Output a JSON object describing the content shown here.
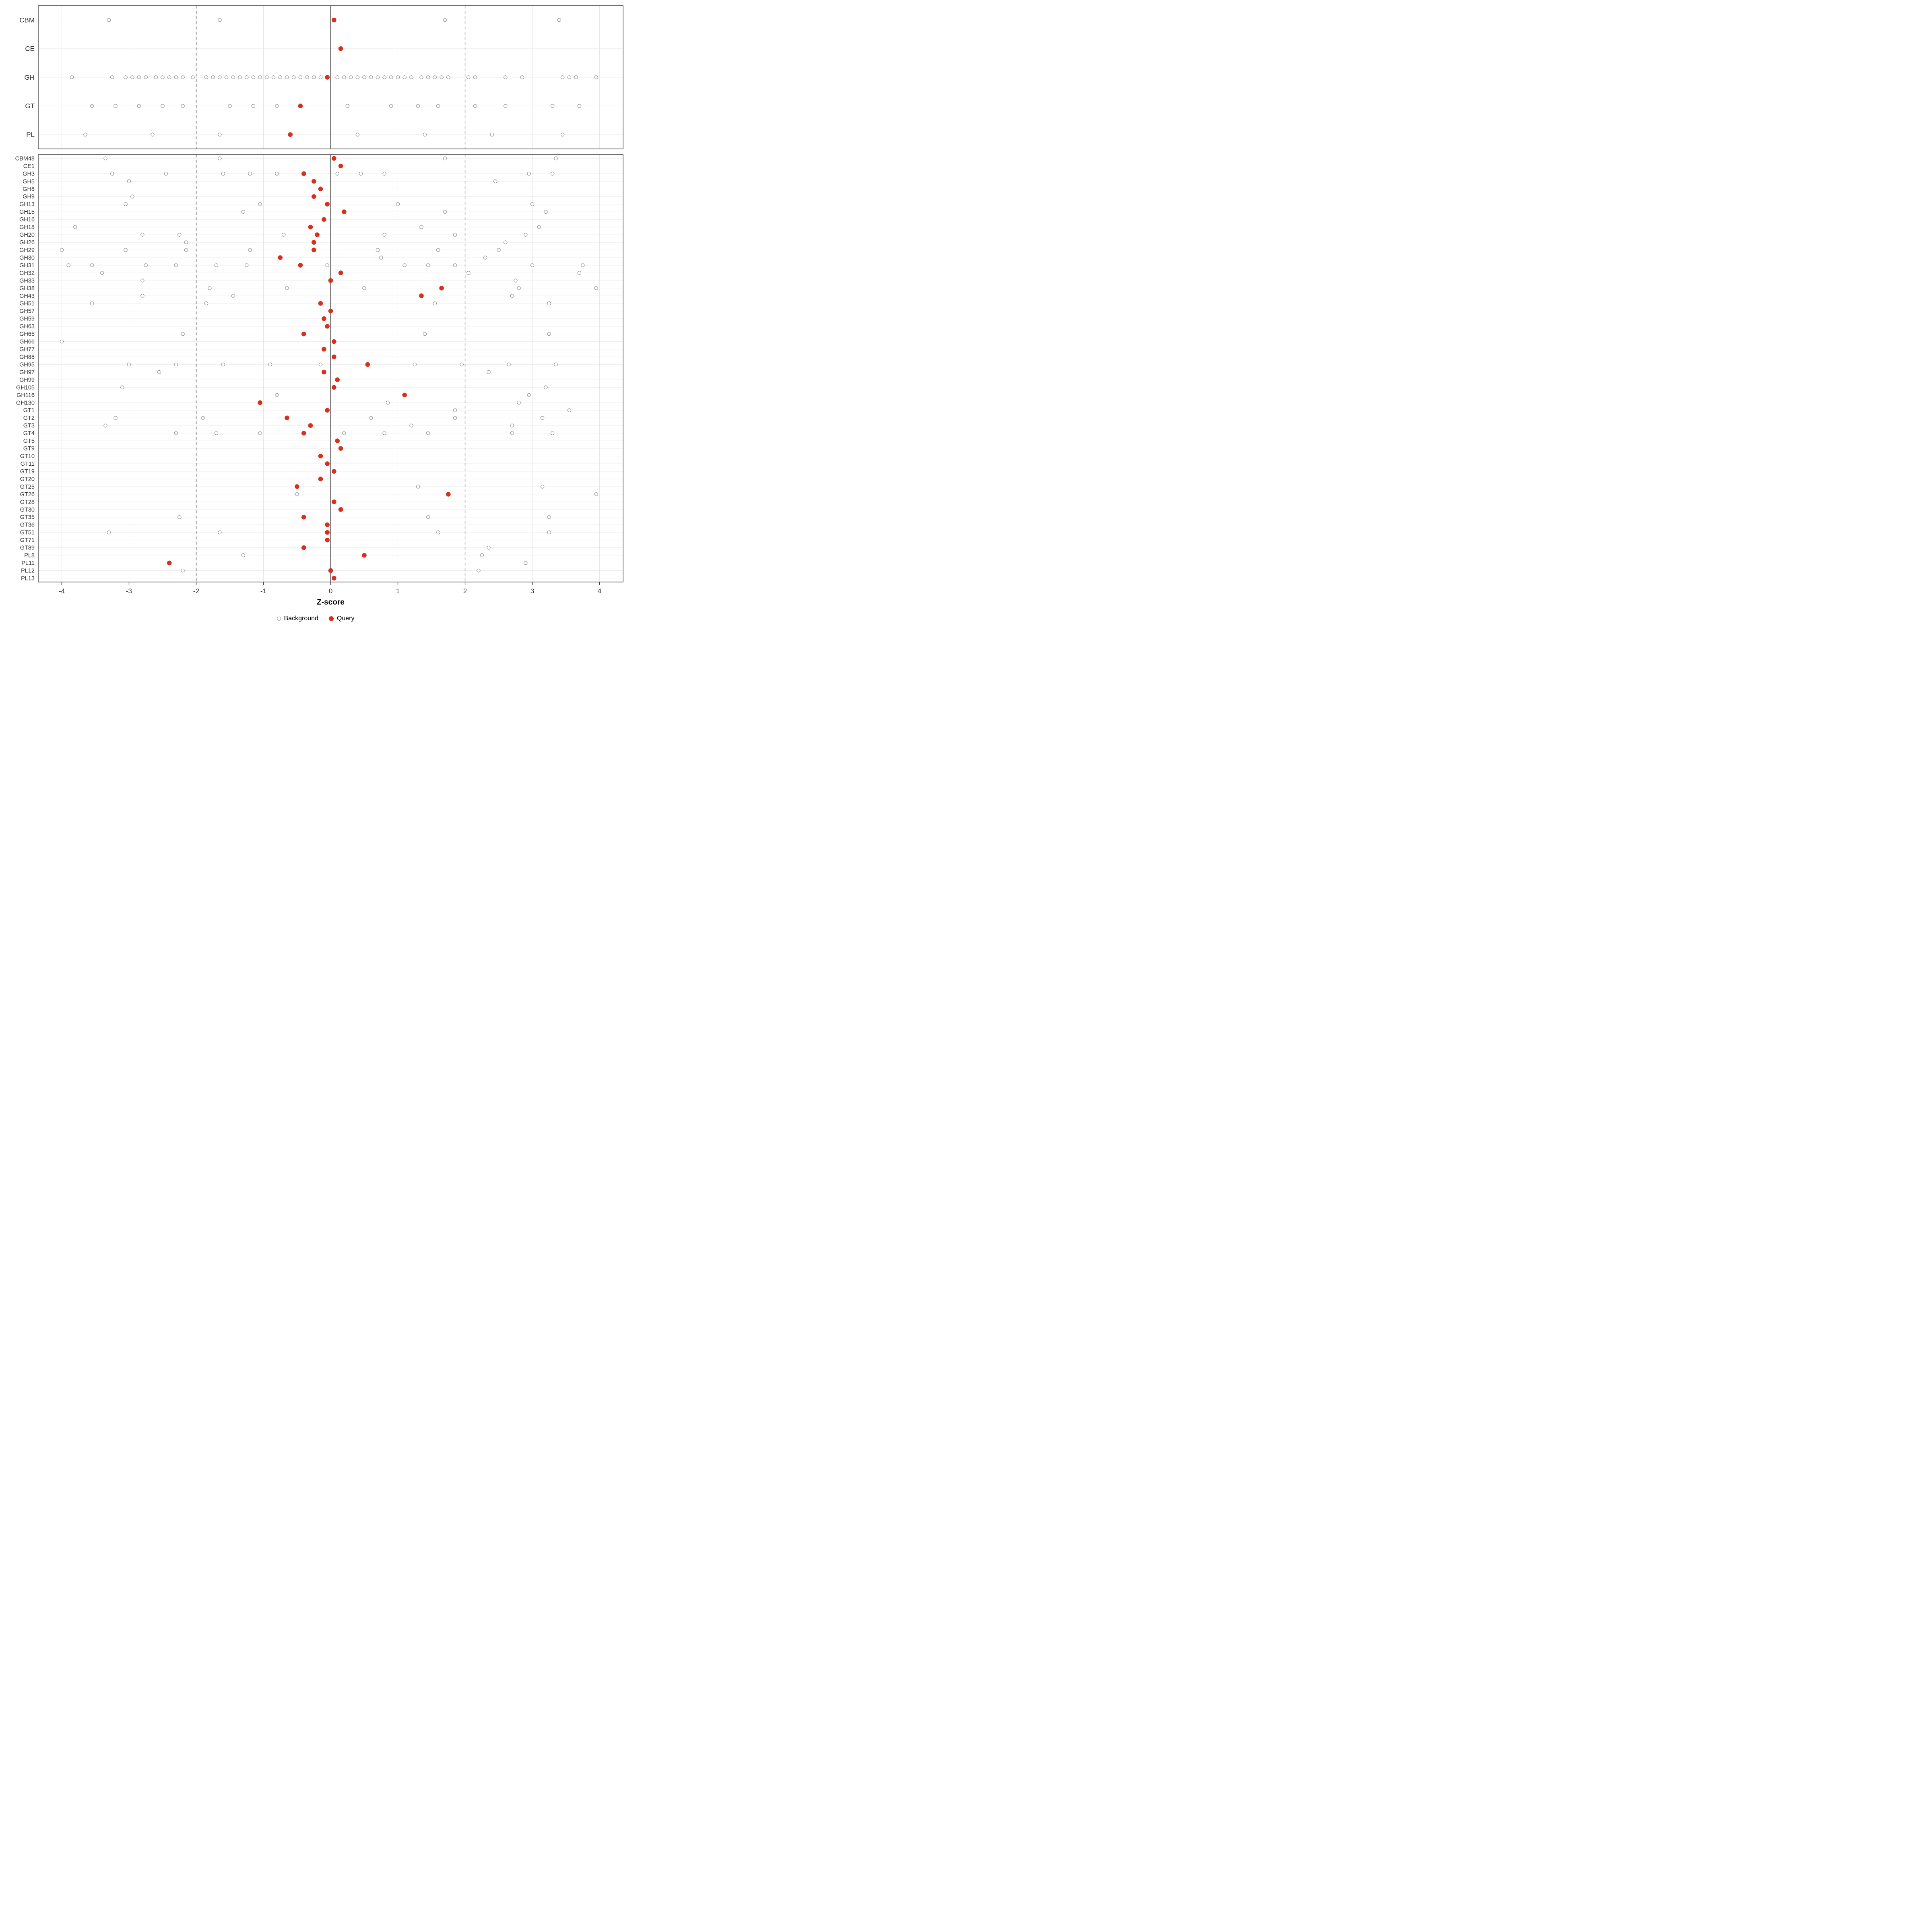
{
  "legend": {
    "background_label": "Background",
    "query_label": "Query"
  },
  "colors": {
    "query": "#d7301f",
    "background_stroke": "#8c8c8c",
    "grid_major": "#e4e4e4",
    "grid_row": "#ededed",
    "zero_line": "#4a4a4a",
    "threshold_line": "#4a4a4a",
    "panel_border": "#333333",
    "axis_text": "#303030"
  },
  "chart_data": {
    "type": "scatter",
    "xlabel": "Z-score",
    "xlim": [
      -4.35,
      4.35
    ],
    "x_ticks": [
      -4,
      -3,
      -2,
      -1,
      0,
      1,
      2,
      3,
      4
    ],
    "grid": true,
    "legend_position": "bottom",
    "series_legend": [
      "Background",
      "Query"
    ],
    "reference_lines": {
      "solid": [
        0
      ],
      "dashed": [
        -2,
        2
      ]
    },
    "panels": [
      {
        "name": "enzyme-class-summary",
        "rows": [
          {
            "label": "CBM",
            "background": [
              -3.3,
              -1.65,
              1.7,
              3.4
            ],
            "query": [
              0.05
            ]
          },
          {
            "label": "CE",
            "background": [],
            "query": [
              0.15
            ]
          },
          {
            "label": "GH",
            "background": [
              -3.85,
              -3.25,
              -3.05,
              -2.95,
              -2.85,
              -2.75,
              -2.6,
              -2.5,
              -2.4,
              -2.3,
              -2.2,
              -2.05,
              -1.85,
              -1.75,
              -1.65,
              -1.55,
              -1.45,
              -1.35,
              -1.25,
              -1.15,
              -1.05,
              -0.95,
              -0.85,
              -0.75,
              -0.65,
              -0.55,
              -0.45,
              -0.35,
              -0.25,
              -0.15,
              0.1,
              0.2,
              0.3,
              0.4,
              0.5,
              0.6,
              0.7,
              0.8,
              0.9,
              1.0,
              1.1,
              1.2,
              1.35,
              1.45,
              1.55,
              1.65,
              1.75,
              2.05,
              2.15,
              2.6,
              2.85,
              3.45,
              3.55,
              3.65,
              3.95
            ],
            "query": [
              -0.05
            ]
          },
          {
            "label": "GT",
            "background": [
              -3.55,
              -3.2,
              -2.85,
              -2.5,
              -2.2,
              -1.5,
              -1.15,
              -0.8,
              0.25,
              0.9,
              1.3,
              1.6,
              2.15,
              2.6,
              3.3,
              3.7
            ],
            "query": [
              -0.45
            ]
          },
          {
            "label": "PL",
            "background": [
              -3.65,
              -2.65,
              -1.65,
              0.4,
              1.4,
              2.4,
              3.45
            ],
            "query": [
              -0.6
            ]
          }
        ]
      },
      {
        "name": "enzyme-family-detail",
        "rows": [
          {
            "label": "CBM48",
            "background": [
              -3.35,
              -1.65,
              1.7,
              3.35
            ],
            "query": [
              0.05
            ]
          },
          {
            "label": "CE1",
            "background": [],
            "query": [
              0.15
            ]
          },
          {
            "label": "GH3",
            "background": [
              -3.25,
              -2.45,
              -1.6,
              -1.2,
              -0.8,
              0.1,
              0.45,
              0.8,
              2.95,
              3.3
            ],
            "query": [
              -0.4
            ]
          },
          {
            "label": "GH5",
            "background": [
              -3.0,
              2.45
            ],
            "query": [
              -0.25
            ]
          },
          {
            "label": "GH8",
            "background": [],
            "query": [
              -0.15
            ]
          },
          {
            "label": "GH9",
            "background": [
              -2.95
            ],
            "query": [
              -0.25
            ]
          },
          {
            "label": "GH13",
            "background": [
              -3.05,
              -1.05,
              1.0,
              3.0
            ],
            "query": [
              -0.05
            ]
          },
          {
            "label": "GH15",
            "background": [
              -1.3,
              1.7,
              3.2
            ],
            "query": [
              0.2
            ]
          },
          {
            "label": "GH16",
            "background": [],
            "query": [
              -0.1
            ]
          },
          {
            "label": "GH18",
            "background": [
              -3.8,
              1.35,
              3.1
            ],
            "query": [
              -0.3
            ]
          },
          {
            "label": "GH20",
            "background": [
              -2.8,
              -2.25,
              -0.7,
              0.8,
              1.85,
              2.9
            ],
            "query": [
              -0.2
            ]
          },
          {
            "label": "GH26",
            "background": [
              -2.15,
              2.6
            ],
            "query": [
              -0.25
            ]
          },
          {
            "label": "GH29",
            "background": [
              -4.0,
              -3.05,
              -2.15,
              -1.2,
              0.7,
              1.6,
              2.5
            ],
            "query": [
              -0.25
            ]
          },
          {
            "label": "GH30",
            "background": [
              0.75,
              2.3
            ],
            "query": [
              -0.75
            ]
          },
          {
            "label": "GH31",
            "background": [
              -3.9,
              -3.55,
              -2.75,
              -2.3,
              -1.7,
              -1.25,
              -0.05,
              1.1,
              1.45,
              1.85,
              3.0,
              3.75
            ],
            "query": [
              -0.45
            ]
          },
          {
            "label": "GH32",
            "background": [
              -3.4,
              2.05,
              3.7
            ],
            "query": [
              0.15
            ]
          },
          {
            "label": "GH33",
            "background": [
              -2.8,
              2.75
            ],
            "query": [
              0.0
            ]
          },
          {
            "label": "GH38",
            "background": [
              -1.8,
              -0.65,
              0.5,
              2.8,
              3.95
            ],
            "query": [
              1.65
            ]
          },
          {
            "label": "GH43",
            "background": [
              -2.8,
              -1.45,
              2.7
            ],
            "query": [
              1.35
            ]
          },
          {
            "label": "GH51",
            "background": [
              -3.55,
              -1.85,
              1.55,
              3.25
            ],
            "query": [
              -0.15
            ]
          },
          {
            "label": "GH57",
            "background": [],
            "query": [
              0.0
            ]
          },
          {
            "label": "GH59",
            "background": [],
            "query": [
              -0.1
            ]
          },
          {
            "label": "GH63",
            "background": [],
            "query": [
              -0.05
            ]
          },
          {
            "label": "GH65",
            "background": [
              -2.2,
              1.4,
              3.25
            ],
            "query": [
              -0.4
            ]
          },
          {
            "label": "GH66",
            "background": [
              -4.0
            ],
            "query": [
              0.05
            ]
          },
          {
            "label": "GH77",
            "background": [],
            "query": [
              -0.1
            ]
          },
          {
            "label": "GH88",
            "background": [],
            "query": [
              0.05
            ]
          },
          {
            "label": "GH95",
            "background": [
              -3.0,
              -2.3,
              -1.6,
              -0.9,
              -0.15,
              1.25,
              1.95,
              2.65,
              3.35
            ],
            "query": [
              0.55
            ]
          },
          {
            "label": "GH97",
            "background": [
              -2.55,
              2.35
            ],
            "query": [
              -0.1
            ]
          },
          {
            "label": "GH99",
            "background": [],
            "query": [
              0.1
            ]
          },
          {
            "label": "GH105",
            "background": [
              -3.1,
              3.2
            ],
            "query": [
              0.05
            ]
          },
          {
            "label": "GH116",
            "background": [
              -0.8,
              2.95
            ],
            "query": [
              1.1
            ]
          },
          {
            "label": "GH130",
            "background": [
              0.85,
              2.8
            ],
            "query": [
              -1.05
            ]
          },
          {
            "label": "GT1",
            "background": [
              1.85,
              3.55
            ],
            "query": [
              -0.05
            ]
          },
          {
            "label": "GT2",
            "background": [
              -3.2,
              -1.9,
              0.6,
              1.85,
              3.15
            ],
            "query": [
              -0.65
            ]
          },
          {
            "label": "GT3",
            "background": [
              -3.35,
              1.2,
              2.7
            ],
            "query": [
              -0.3
            ]
          },
          {
            "label": "GT4",
            "background": [
              -2.3,
              -1.7,
              -1.05,
              0.2,
              0.8,
              1.45,
              2.7,
              3.3
            ],
            "query": [
              -0.4
            ]
          },
          {
            "label": "GT5",
            "background": [],
            "query": [
              0.1
            ]
          },
          {
            "label": "GT9",
            "background": [],
            "query": [
              0.15
            ]
          },
          {
            "label": "GT10",
            "background": [],
            "query": [
              -0.15
            ]
          },
          {
            "label": "GT11",
            "background": [],
            "query": [
              -0.05
            ]
          },
          {
            "label": "GT19",
            "background": [],
            "query": [
              0.05
            ]
          },
          {
            "label": "GT20",
            "background": [],
            "query": [
              -0.15
            ]
          },
          {
            "label": "GT25",
            "background": [
              1.3,
              3.15
            ],
            "query": [
              -0.5
            ]
          },
          {
            "label": "GT26",
            "background": [
              -0.5,
              3.95
            ],
            "query": [
              1.75
            ]
          },
          {
            "label": "GT28",
            "background": [],
            "query": [
              0.05
            ]
          },
          {
            "label": "GT30",
            "background": [],
            "query": [
              0.15
            ]
          },
          {
            "label": "GT35",
            "background": [
              -2.25,
              1.45,
              3.25
            ],
            "query": [
              -0.4
            ]
          },
          {
            "label": "GT36",
            "background": [],
            "query": [
              -0.05
            ]
          },
          {
            "label": "GT51",
            "background": [
              -3.3,
              -1.65,
              1.6,
              3.25
            ],
            "query": [
              -0.05
            ]
          },
          {
            "label": "GT71",
            "background": [],
            "query": [
              -0.05
            ]
          },
          {
            "label": "GT89",
            "background": [
              2.35
            ],
            "query": [
              -0.4
            ]
          },
          {
            "label": "PL8",
            "background": [
              -1.3,
              2.25
            ],
            "query": [
              0.5
            ]
          },
          {
            "label": "PL11",
            "background": [
              2.9
            ],
            "query": [
              -2.4
            ]
          },
          {
            "label": "PL12",
            "background": [
              -2.2,
              2.2
            ],
            "query": [
              0.0
            ]
          },
          {
            "label": "PL13",
            "background": [],
            "query": [
              0.05
            ]
          }
        ]
      }
    ]
  }
}
